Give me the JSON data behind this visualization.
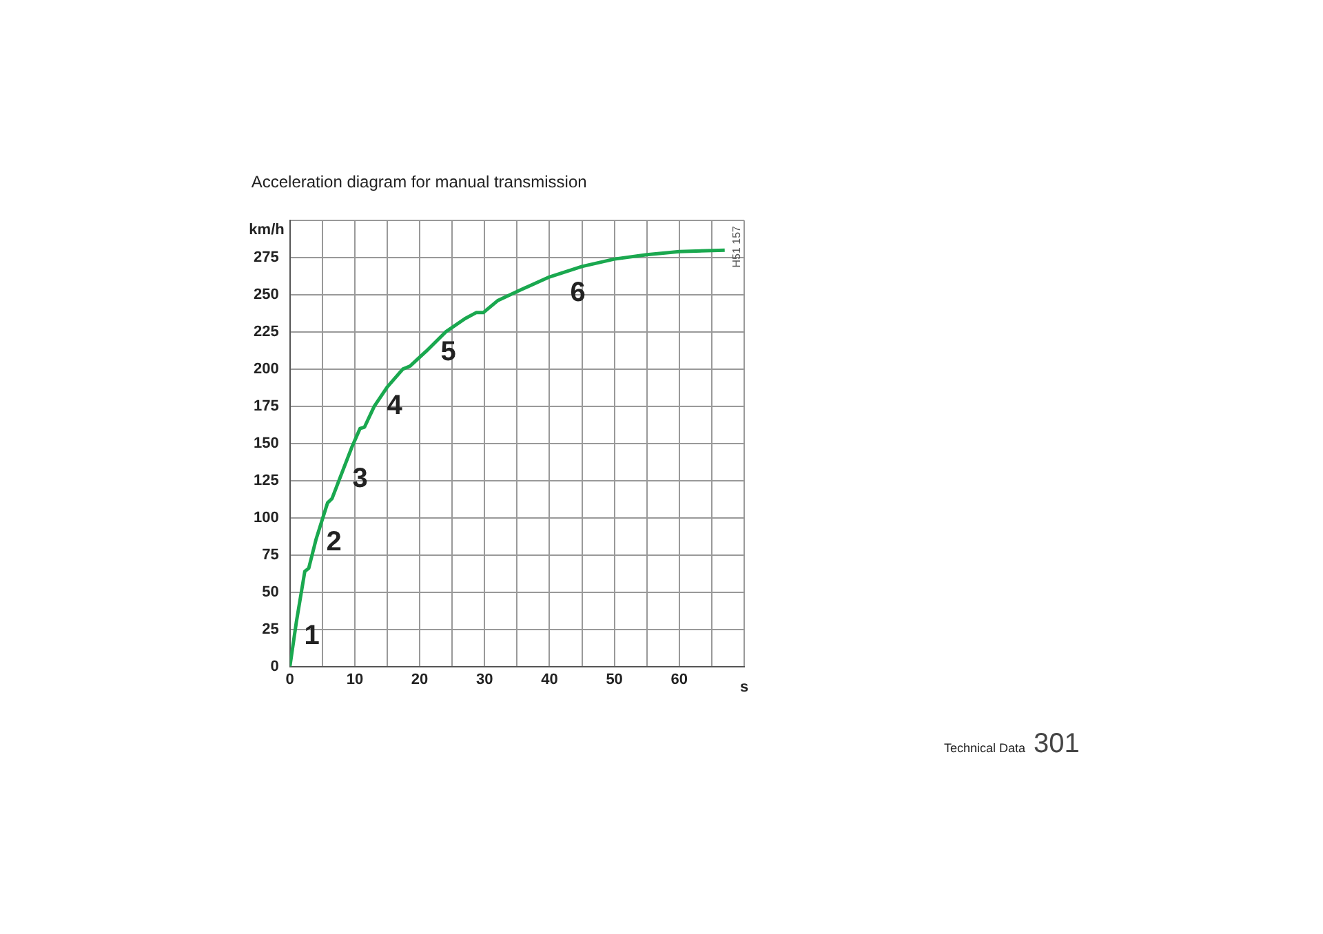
{
  "chart_data": {
    "type": "line",
    "title": "Acceleration diagram for manual transmission",
    "xlabel": "s",
    "ylabel": "km/h",
    "x": [
      0,
      1,
      2.3,
      2.9,
      4,
      5,
      5.8,
      6.5,
      8,
      9.5,
      10.8,
      11.5,
      13,
      15,
      17.4,
      18.5,
      21,
      24,
      27,
      28.7,
      29.8,
      32,
      35.4,
      40,
      45,
      50,
      55,
      60,
      67
    ],
    "series": [
      {
        "color": "#1aa84f",
        "values": [
          0,
          30,
          64,
          66,
          85,
          99,
          110,
          113,
          130,
          147,
          160,
          161,
          175,
          188,
          200,
          202,
          212,
          225,
          234,
          238,
          238,
          246,
          253,
          262,
          269,
          274,
          277,
          279,
          280
        ]
      }
    ],
    "xlim": [
      0,
      70
    ],
    "xticks": [
      0,
      {
        "value": 5,
        "label": null
      },
      10,
      {
        "value": 15,
        "label": null
      },
      20,
      {
        "value": 25,
        "label": null
      },
      30,
      {
        "value": 35,
        "label": null
      },
      40,
      {
        "value": 45,
        "label": null
      },
      50,
      {
        "value": 55,
        "label": null
      },
      60,
      {
        "value": 65,
        "label": null
      },
      {
        "value": 70,
        "label": null
      }
    ],
    "ylim": [
      0,
      300
    ],
    "yticks": [
      0,
      25,
      50,
      75,
      100,
      125,
      150,
      175,
      200,
      225,
      250,
      275,
      {
        "value": 300,
        "label": null
      }
    ],
    "grid": true,
    "legend": false,
    "marker": "none",
    "line_style": "solid",
    "annotations": [
      "1",
      "2",
      "3",
      "4",
      "5",
      "6",
      "H51 157",
      "Technical Data",
      "301"
    ]
  }
}
